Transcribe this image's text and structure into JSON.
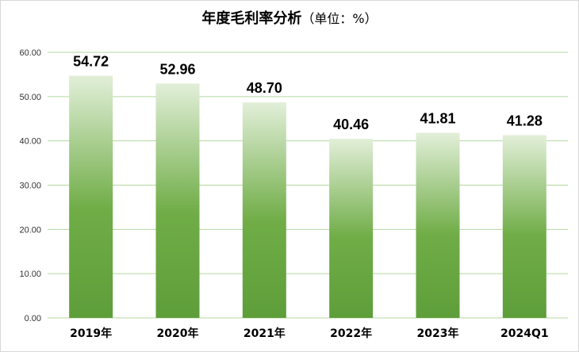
{
  "chart_data": {
    "type": "bar",
    "title": "年度毛利率分析",
    "unit": "（单位：%）",
    "categories": [
      "2019年",
      "2020年",
      "2021年",
      "2022年",
      "2023年",
      "2024Q1"
    ],
    "values": [
      54.72,
      52.96,
      48.7,
      40.46,
      41.81,
      41.28
    ],
    "data_labels": [
      "54.72",
      "52.96",
      "48.70",
      "40.46",
      "41.81",
      "41.28"
    ],
    "yticks": [
      "0.00",
      "10.00",
      "20.00",
      "30.00",
      "40.00",
      "50.00",
      "60.00"
    ],
    "ylim": [
      0,
      60
    ],
    "grid": true,
    "legend": false,
    "bar_gradient": [
      "#e2efd9",
      "#70ad47",
      "#5e9e3a"
    ],
    "gridline_color": "#b4d79f"
  }
}
